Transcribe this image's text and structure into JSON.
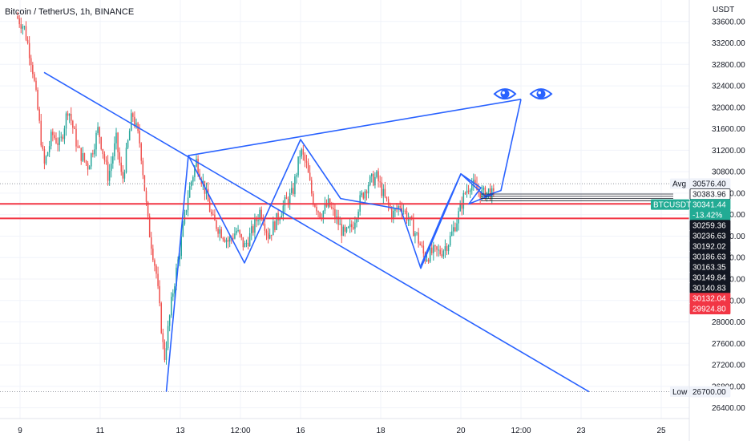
{
  "chart_data": {
    "type": "candlestick",
    "title": "Bitcoin / TetherUS, 1h, BINANCE",
    "currency": "USDT",
    "ylim": [
      26200,
      34000
    ],
    "y_ticks": [
      26400,
      26800,
      27200,
      27600,
      28000,
      28400,
      28800,
      29200,
      29600,
      30000,
      30400,
      30800,
      31200,
      31600,
      32000,
      32400,
      32800,
      33200,
      33600
    ],
    "y_tick_labels": [
      "26400.00",
      "26800.00",
      "27200.00",
      "27600.00",
      "28000.00",
      "28400.00",
      "28800.00",
      "29200.00",
      "29600.00",
      "30000.00",
      "30400.00",
      "30800.00",
      "31200.00",
      "31600.00",
      "32000.00",
      "32400.00",
      "32800.00",
      "33200.00",
      "33600.00"
    ],
    "xlim": [
      8.5,
      25.7
    ],
    "x_ticks": [
      {
        "x": 9,
        "label": "9"
      },
      {
        "x": 11,
        "label": "11"
      },
      {
        "x": 13,
        "label": "13"
      },
      {
        "x": 14.5,
        "label": "12:00"
      },
      {
        "x": 16,
        "label": "16"
      },
      {
        "x": 18,
        "label": "18"
      },
      {
        "x": 20,
        "label": "20"
      },
      {
        "x": 21.5,
        "label": "12:00"
      },
      {
        "x": 23,
        "label": "23"
      },
      {
        "x": 25,
        "label": "25"
      }
    ],
    "colors": {
      "up": "#26a69a",
      "down": "#ef5350",
      "drawing": "#2962ff",
      "support": "#f23645",
      "current": "#22ab94"
    },
    "price_path": [
      [
        8.9,
        33700
      ],
      [
        9.1,
        33500
      ],
      [
        9.3,
        32800
      ],
      [
        9.45,
        31900
      ],
      [
        9.6,
        30900
      ],
      [
        9.8,
        31500
      ],
      [
        10.0,
        31300
      ],
      [
        10.2,
        32000
      ],
      [
        10.45,
        31200
      ],
      [
        10.7,
        30900
      ],
      [
        10.95,
        31600
      ],
      [
        11.2,
        30700
      ],
      [
        11.4,
        31400
      ],
      [
        11.55,
        30600
      ],
      [
        11.8,
        31900
      ],
      [
        12.0,
        31300
      ],
      [
        12.2,
        29800
      ],
      [
        12.4,
        28900
      ],
      [
        12.6,
        27300
      ],
      [
        12.8,
        28500
      ],
      [
        13.0,
        29400
      ],
      [
        13.2,
        30400
      ],
      [
        13.4,
        31000
      ],
      [
        13.6,
        30500
      ],
      [
        13.8,
        29900
      ],
      [
        14.0,
        29700
      ],
      [
        14.2,
        29500
      ],
      [
        14.4,
        29700
      ],
      [
        14.6,
        29400
      ],
      [
        14.8,
        29700
      ],
      [
        15.0,
        30100
      ],
      [
        15.2,
        29600
      ],
      [
        15.4,
        29900
      ],
      [
        15.6,
        30200
      ],
      [
        15.8,
        30400
      ],
      [
        16.0,
        31200
      ],
      [
        16.15,
        30900
      ],
      [
        16.3,
        30300
      ],
      [
        16.5,
        30000
      ],
      [
        16.7,
        30200
      ],
      [
        16.9,
        29900
      ],
      [
        17.1,
        29600
      ],
      [
        17.3,
        29800
      ],
      [
        17.5,
        30300
      ],
      [
        17.7,
        30600
      ],
      [
        17.9,
        30700
      ],
      [
        18.1,
        30300
      ],
      [
        18.3,
        30000
      ],
      [
        18.5,
        30200
      ],
      [
        18.7,
        29900
      ],
      [
        18.9,
        29600
      ],
      [
        19.1,
        29200
      ],
      [
        19.3,
        29300
      ],
      [
        19.5,
        29300
      ],
      [
        19.7,
        29500
      ],
      [
        19.9,
        29900
      ],
      [
        20.1,
        30400
      ],
      [
        20.25,
        30600
      ],
      [
        20.4,
        30450
      ],
      [
        20.55,
        30380
      ],
      [
        20.7,
        30440
      ],
      [
        20.8,
        30341
      ]
    ],
    "annotations": {
      "drawings": [
        {
          "kind": "trendline",
          "points": [
            [
              9.6,
              32650
            ],
            [
              23.2,
              26700
            ]
          ]
        },
        {
          "kind": "trendline",
          "points": [
            [
              13.2,
              31100
            ],
            [
              21.5,
              32150
            ]
          ]
        },
        {
          "kind": "polyline",
          "points": [
            [
              12.65,
              26700
            ],
            [
              13.2,
              31100
            ],
            [
              14.6,
              29100
            ],
            [
              16.0,
              31400
            ],
            [
              17.0,
              30300
            ],
            [
              18.5,
              30100
            ],
            [
              19.0,
              29000
            ],
            [
              20.0,
              30760
            ],
            [
              20.6,
              30350
            ],
            [
              21.0,
              30450
            ],
            [
              21.5,
              32150
            ]
          ]
        },
        {
          "kind": "polyline",
          "points": [
            [
              19.0,
              29050
            ],
            [
              19.6,
              30100
            ],
            [
              20.0,
              30760
            ],
            [
              20.5,
              30500
            ],
            [
              20.2,
              30200
            ],
            [
              20.8,
              30380
            ]
          ]
        }
      ],
      "support_lines": [
        30200,
        29930
      ],
      "eye_icons": [
        [
          21.1,
          32250
        ],
        [
          22.0,
          32250
        ]
      ],
      "price_tags": [
        {
          "label": "Avg",
          "price": 30576.4,
          "text": "30576.40",
          "style": "light"
        },
        {
          "price": 30383.96,
          "text": "30383.96",
          "style": "white"
        },
        {
          "label": "BTCUSDT",
          "price": 30341.44,
          "text": "30341.44",
          "style": "current"
        },
        {
          "text": "-13.42%",
          "price": 30300,
          "style": "current-sub"
        },
        {
          "price": 30259.36,
          "text": "30259.36",
          "style": "black"
        },
        {
          "price": 30236.63,
          "text": "30236.63",
          "style": "black"
        },
        {
          "price": 30192.02,
          "text": "30192.02",
          "style": "black"
        },
        {
          "price": 30186.63,
          "text": "30186.63",
          "style": "black"
        },
        {
          "price": 30163.35,
          "text": "30163.35",
          "style": "black"
        },
        {
          "price": 30149.84,
          "text": "30149.84",
          "style": "black"
        },
        {
          "price": 30140.83,
          "text": "30140.83",
          "style": "black"
        },
        {
          "price": 30132.04,
          "text": "30132.04",
          "style": "red"
        },
        {
          "price": 29924.8,
          "text": "29924.80",
          "style": "red"
        },
        {
          "label": "Low",
          "price": 26700,
          "text": "26700.00",
          "style": "light"
        }
      ]
    }
  }
}
